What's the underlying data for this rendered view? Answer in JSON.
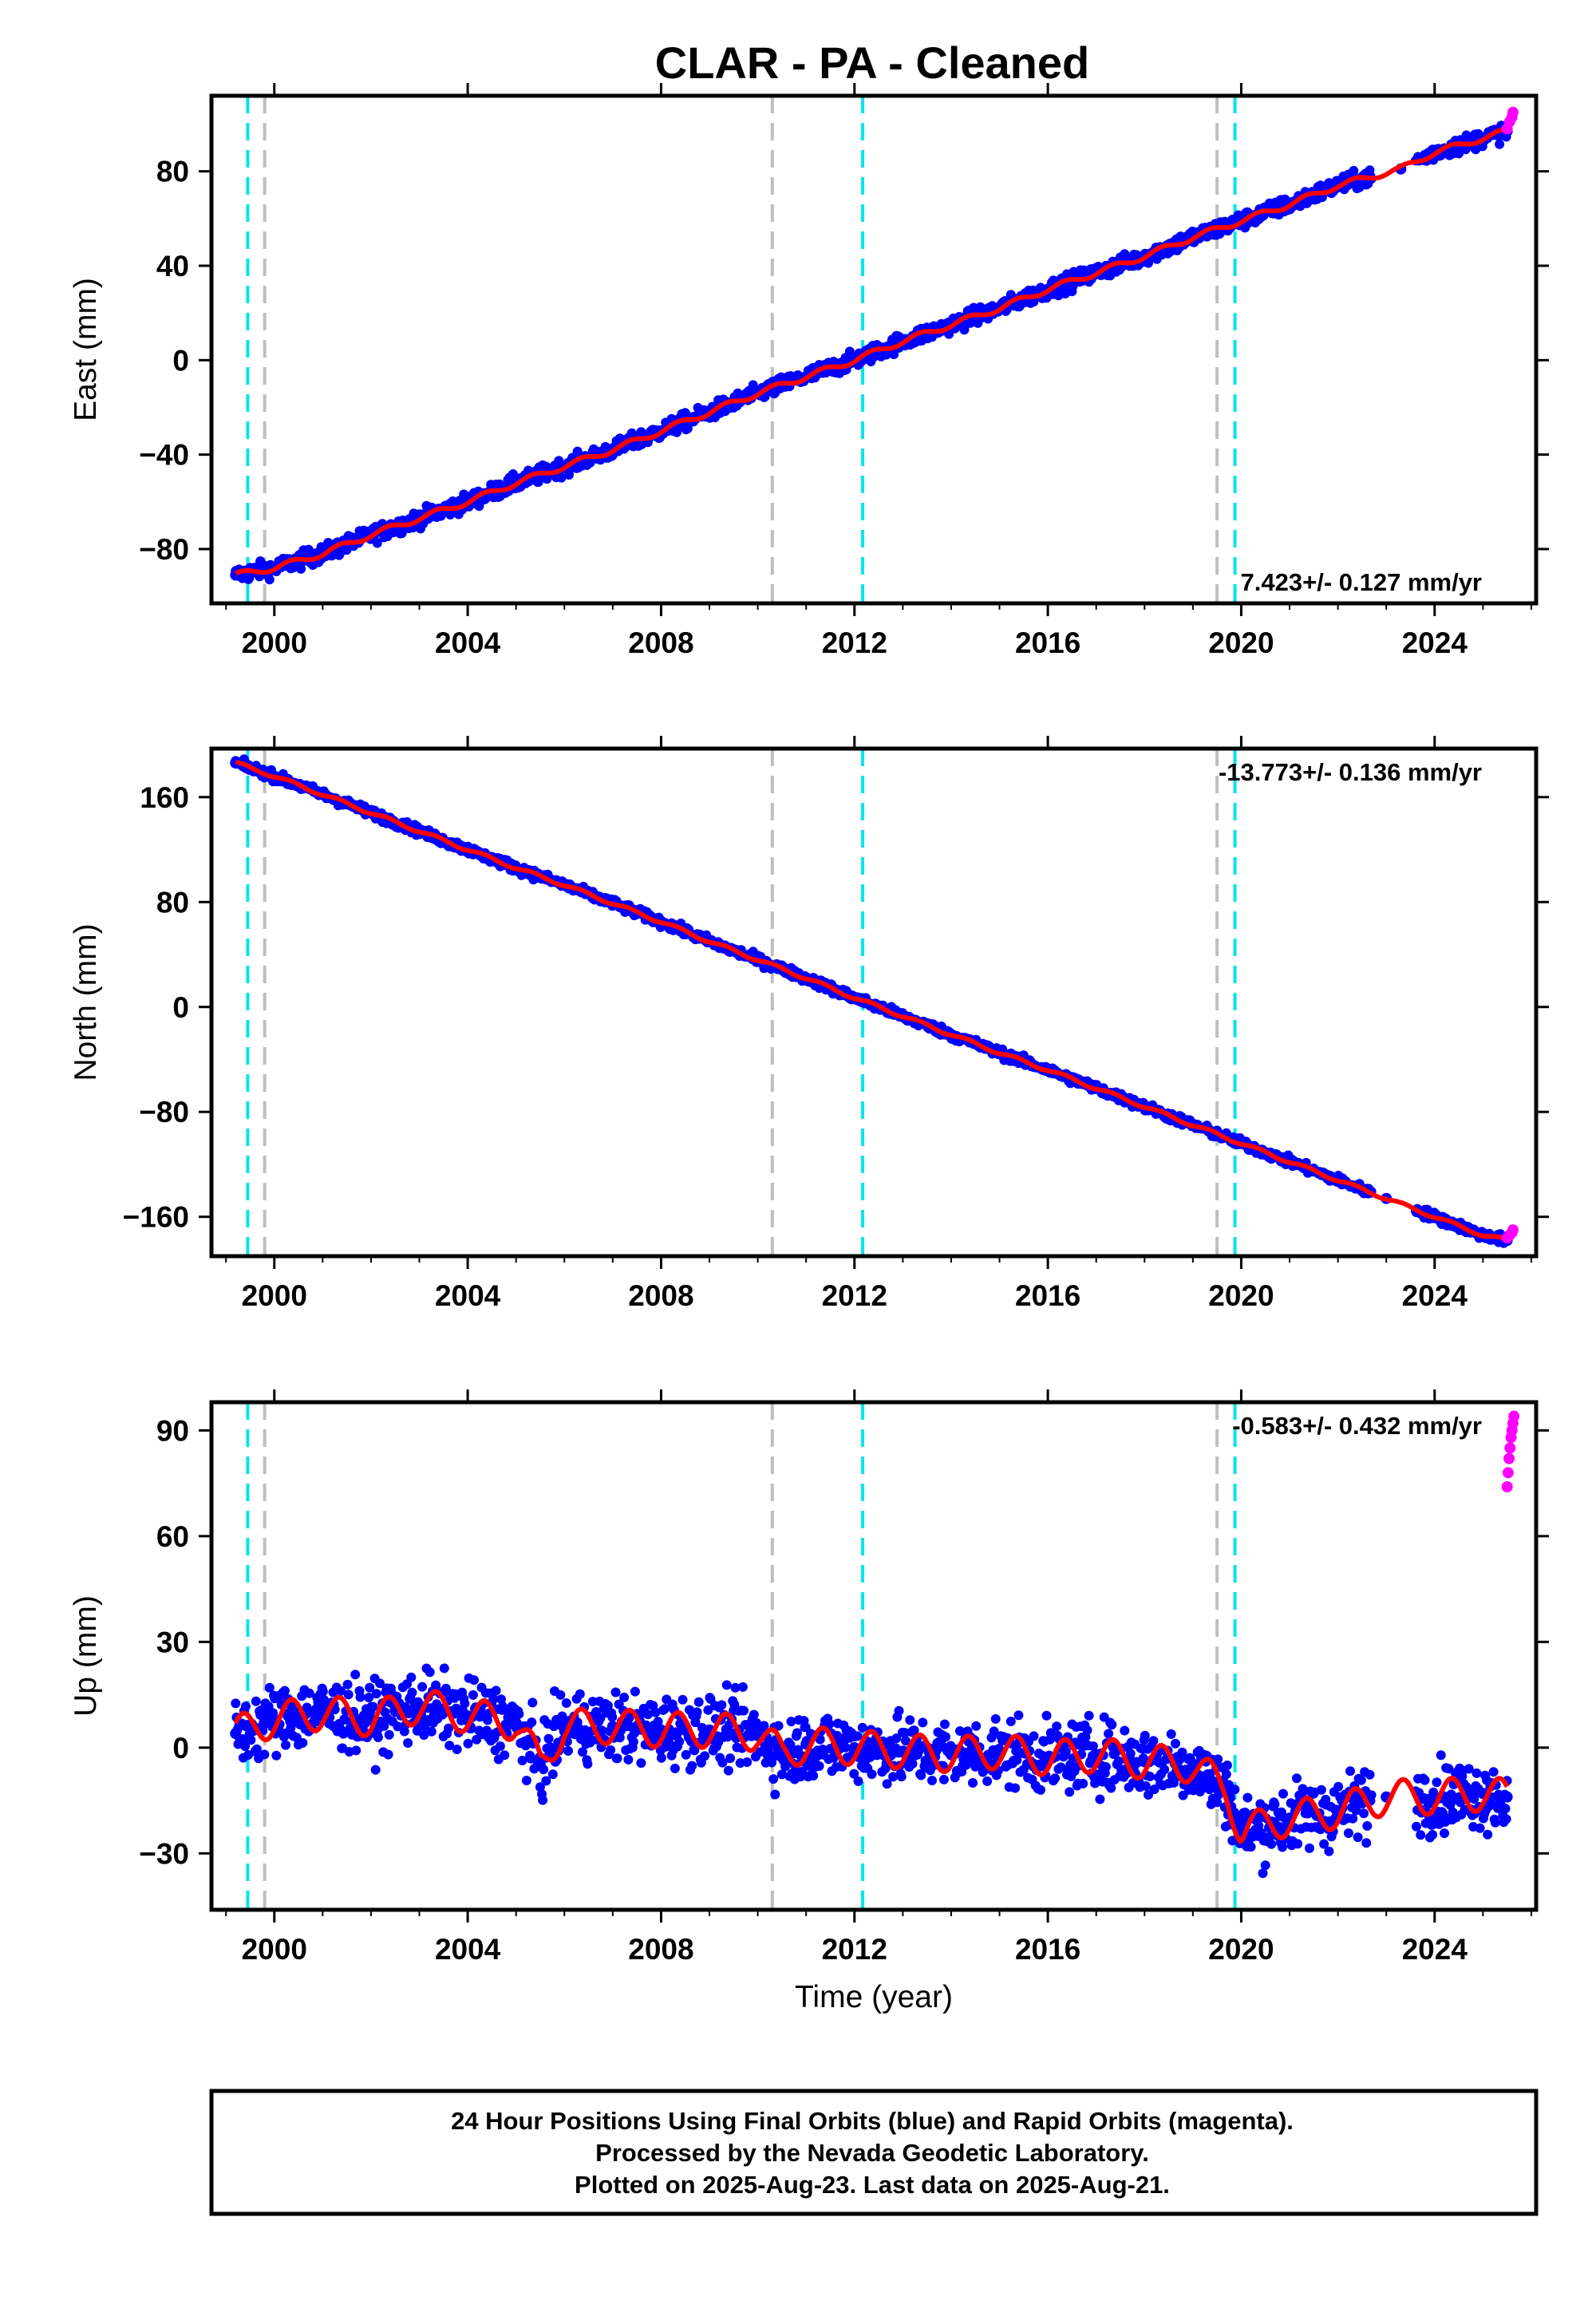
{
  "title": "CLAR  - PA - Cleaned",
  "colors": {
    "final": "#0000ff",
    "rapid": "#ff00ff",
    "model": "#ff0000",
    "event_cyan": "#00e5ee",
    "event_gray": "#bebebe"
  },
  "chart_data": [
    {
      "type": "scatter",
      "panel": "east",
      "ylabel": "East (mm)",
      "xlabel": "",
      "xlim": [
        1998.7,
        2026.1
      ],
      "ylim": [
        -103,
        112
      ],
      "xticks": [
        2000,
        2004,
        2008,
        2012,
        2016,
        2020,
        2024
      ],
      "xtick_labels": [
        "2000",
        "2004",
        "2008",
        "2012",
        "2016",
        "2020",
        "2024"
      ],
      "yticks": [
        -80,
        -40,
        0,
        40,
        80
      ],
      "ytick_labels": [
        "−80",
        "−40",
        "0",
        "40",
        "80"
      ],
      "rate_label": "7.423+/- 0.127 mm/yr",
      "rate_position": "bottom-right",
      "cyan_events": [
        1999.45,
        2012.17,
        2019.87
      ],
      "gray_events": [
        1999.8,
        2010.3,
        2019.5
      ],
      "series": [
        {
          "name": "Final Orbits",
          "x": [
            1999.2,
            2000.0,
            2001.0,
            2002.0,
            2003.0,
            2004.0,
            2005.0,
            2006.0,
            2007.0,
            2008.0,
            2009.0,
            2010.0,
            2011.0,
            2012.0,
            2013.0,
            2014.0,
            2015.0,
            2016.0,
            2017.0,
            2018.0,
            2019.0,
            2020.0,
            2021.0,
            2022.0,
            2023.3,
            2024.0,
            2025.0,
            2025.5
          ],
          "y": [
            -91,
            -88,
            -82,
            -74,
            -67,
            -60,
            -52,
            -45,
            -38,
            -30,
            -22,
            -14,
            -7,
            0,
            8,
            15,
            22,
            30,
            37,
            44,
            52,
            59,
            66,
            74,
            81,
            88,
            94,
            97
          ]
        },
        {
          "name": "Rapid Orbits",
          "x": [
            2025.5,
            2025.55,
            2025.6,
            2025.62
          ],
          "y": [
            98,
            101,
            103,
            105
          ]
        }
      ]
    },
    {
      "type": "scatter",
      "panel": "north",
      "ylabel": "North (mm)",
      "xlabel": "",
      "xlim": [
        1998.7,
        2026.1
      ],
      "ylim": [
        -190,
        197
      ],
      "xticks": [
        2000,
        2004,
        2008,
        2012,
        2016,
        2020,
        2024
      ],
      "xtick_labels": [
        "2000",
        "2004",
        "2008",
        "2012",
        "2016",
        "2020",
        "2024"
      ],
      "yticks": [
        -160,
        -80,
        0,
        80,
        160
      ],
      "ytick_labels": [
        "−160",
        "−80",
        "0",
        "80",
        "160"
      ],
      "rate_label": "-13.773+/- 0.136 mm/yr",
      "rate_position": "top-right",
      "cyan_events": [
        1999.45,
        2012.17,
        2019.87
      ],
      "gray_events": [
        1999.8,
        2010.3,
        2019.5
      ],
      "series": [
        {
          "name": "Final Orbits",
          "x": [
            1999.2,
            2000.0,
            2001.0,
            2002.0,
            2003.0,
            2004.0,
            2005.0,
            2006.0,
            2007.0,
            2008.0,
            2009.0,
            2010.0,
            2011.0,
            2012.0,
            2013.0,
            2014.0,
            2015.0,
            2016.0,
            2017.0,
            2018.0,
            2019.0,
            2020.0,
            2021.0,
            2022.0,
            2023.0,
            2024.0,
            2025.0,
            2025.5
          ],
          "y": [
            186,
            176,
            162,
            148,
            134,
            120,
            106,
            93,
            79,
            65,
            50,
            36,
            22,
            7,
            -7,
            -21,
            -35,
            -48,
            -62,
            -76,
            -90,
            -104,
            -118,
            -132,
            -146,
            -160,
            -174,
            -178
          ]
        },
        {
          "name": "Rapid Orbits",
          "x": [
            2025.5,
            2025.55,
            2025.6,
            2025.62
          ],
          "y": [
            -176,
            -174,
            -172,
            -170
          ]
        }
      ]
    },
    {
      "type": "scatter",
      "panel": "up",
      "ylabel": "Up (mm)",
      "xlabel": "Time (year)",
      "xlim": [
        1998.7,
        2026.1
      ],
      "ylim": [
        -46,
        98
      ],
      "xticks": [
        2000,
        2004,
        2008,
        2012,
        2016,
        2020,
        2024
      ],
      "xtick_labels": [
        "2000",
        "2004",
        "2008",
        "2012",
        "2016",
        "2020",
        "2024"
      ],
      "yticks": [
        -30,
        0,
        30,
        60,
        90
      ],
      "ytick_labels": [
        "−30",
        "0",
        "30",
        "60",
        "90"
      ],
      "rate_label": "-0.583+/- 0.432 mm/yr",
      "rate_position": "top-right",
      "cyan_events": [
        1999.45,
        2012.17,
        2019.87
      ],
      "gray_events": [
        1999.8,
        2010.3,
        2019.5
      ],
      "series": [
        {
          "name": "Final Orbits",
          "x": [
            1999.2,
            2000.0,
            2001.0,
            2002.0,
            2003.0,
            2004.0,
            2005.0,
            2005.5,
            2006.0,
            2007.0,
            2008.0,
            2009.0,
            2010.0,
            2010.5,
            2011.0,
            2012.0,
            2013.0,
            2014.0,
            2015.0,
            2016.0,
            2017.0,
            2018.0,
            2019.0,
            2019.7,
            2020.0,
            2021.0,
            2022.0,
            2023.0,
            2024.0,
            2025.0,
            2025.5
          ],
          "y": [
            4,
            8,
            10,
            8,
            12,
            9,
            7,
            -5,
            6,
            6,
            5,
            5,
            4,
            -2,
            1,
            0,
            -1,
            -2,
            -1,
            -3,
            -2,
            -4,
            -5,
            -12,
            -24,
            -20,
            -18,
            -14,
            -14,
            -13,
            -14
          ]
        },
        {
          "name": "Rapid Orbits",
          "x": [
            2025.5,
            2025.52,
            2025.54,
            2025.56,
            2025.58,
            2025.6,
            2025.62,
            2025.64
          ],
          "y": [
            74,
            78,
            82,
            85,
            88,
            90,
            92,
            94
          ]
        }
      ]
    }
  ],
  "footer": {
    "line1": "24 Hour Positions Using Final Orbits (blue) and Rapid Orbits (magenta).",
    "line2": "Processed by the Nevada Geodetic Laboratory.",
    "line3": "Plotted on 2025-Aug-23. Last data on 2025-Aug-21."
  }
}
